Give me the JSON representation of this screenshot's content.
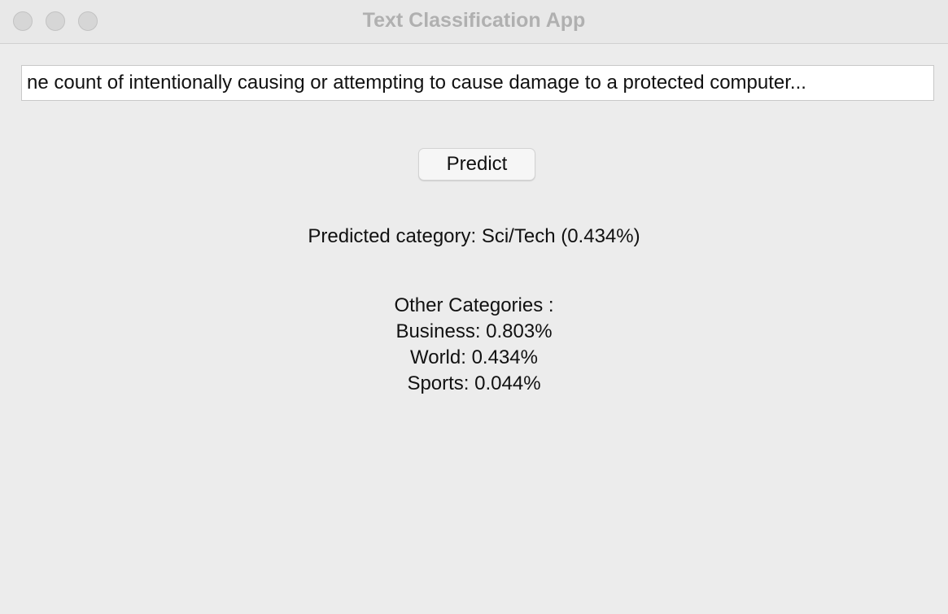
{
  "window": {
    "title": "Text Classification App"
  },
  "input": {
    "value": "ne count of intentionally causing or attempting to cause damage to a protected computer..."
  },
  "predict_button": {
    "label": "Predict"
  },
  "result": {
    "text": "Predicted category: Sci/Tech (0.434%)"
  },
  "other_categories": {
    "heading": "Other Categories :",
    "items": [
      "Business: 0.803%",
      "World: 0.434%",
      "Sports: 0.044%"
    ]
  }
}
